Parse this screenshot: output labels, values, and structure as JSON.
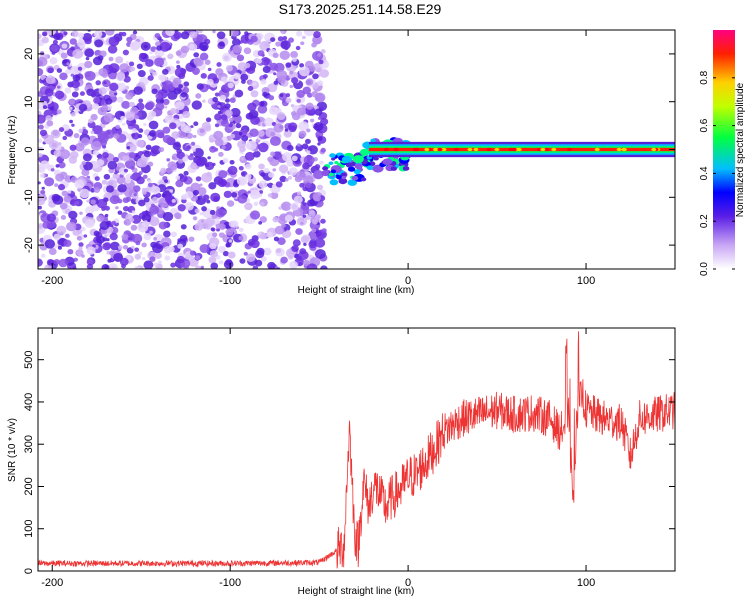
{
  "title": "S173.2025.251.14.58.E29",
  "chart_data": [
    {
      "type": "heatmap",
      "name": "spectrogram",
      "xlabel": "Height of straight line (km)",
      "ylabel": "Frequency (Hz)",
      "xlim": [
        -208,
        150
      ],
      "ylim": [
        -25,
        25
      ],
      "xticks": [
        -200,
        -100,
        0,
        100
      ],
      "xtick_labels": [
        "-200",
        "-100",
        "0",
        "100"
      ],
      "yticks": [
        -20,
        -10,
        0,
        10,
        20
      ],
      "ytick_labels": [
        "-20",
        "-10",
        "0",
        "10",
        "20"
      ],
      "noise_region": [
        -208,
        -47
      ],
      "transition_region": [
        -47,
        0
      ],
      "carrier_region": [
        0,
        150
      ],
      "carrier_frequency": 0,
      "colorbar": {
        "label": "Normalized spectral amplitude",
        "range": [
          0,
          1
        ],
        "ticks": [
          0.0,
          0.2,
          0.4,
          0.6,
          0.8
        ],
        "tick_labels": [
          "0.0",
          "0.2",
          "0.4",
          "0.6",
          "0.8"
        ]
      }
    },
    {
      "type": "line",
      "name": "snr",
      "xlabel": "Height of straight line (km)",
      "ylabel": "SNR (10 * v/v)",
      "xlim": [
        -208,
        150
      ],
      "ylim": [
        0,
        575
      ],
      "xticks": [
        -200,
        -100,
        0,
        100
      ],
      "xtick_labels": [
        "-200",
        "-100",
        "0",
        "100"
      ],
      "yticks": [
        0,
        100,
        200,
        300,
        400,
        500
      ],
      "ytick_labels": [
        "0",
        "100",
        "200",
        "300",
        "400",
        "500"
      ],
      "color": "#ee3333",
      "series": [
        {
          "name": "SNR",
          "x": [
            -208,
            -150,
            -100,
            -50,
            -36,
            -33,
            -30,
            -28,
            -25,
            -22,
            -20,
            -18,
            -15,
            -12,
            -10,
            -5,
            0,
            5,
            10,
            15,
            20,
            30,
            40,
            50,
            60,
            70,
            80,
            85,
            88,
            90,
            93,
            95,
            98,
            100,
            110,
            120,
            125,
            130,
            140,
            150
          ],
          "y": [
            18,
            18,
            18,
            20,
            60,
            340,
            90,
            60,
            210,
            150,
            190,
            200,
            170,
            150,
            170,
            190,
            220,
            230,
            260,
            290,
            330,
            360,
            370,
            380,
            370,
            375,
            360,
            330,
            340,
            380,
            150,
            380,
            420,
            380,
            360,
            350,
            270,
            360,
            370,
            380
          ]
        }
      ]
    }
  ]
}
